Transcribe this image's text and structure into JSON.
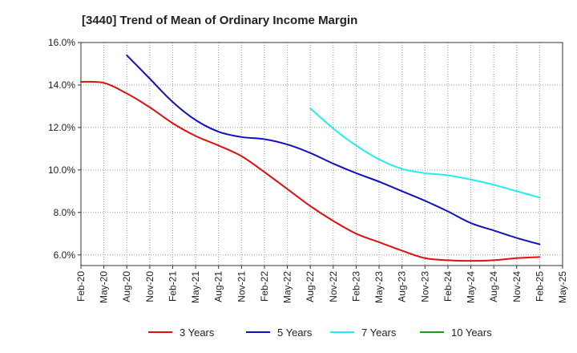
{
  "chart_data": {
    "type": "line",
    "title": "[3440]  Trend of Mean of Ordinary Income Margin",
    "xlabel": "",
    "ylabel": "",
    "ylim": [
      5.5,
      16.0
    ],
    "yticks": [
      6.0,
      8.0,
      10.0,
      12.0,
      14.0,
      16.0
    ],
    "ytick_labels": [
      "6.0%",
      "8.0%",
      "10.0%",
      "12.0%",
      "14.0%",
      "16.0%"
    ],
    "xticks": [
      "Feb-20",
      "May-20",
      "Aug-20",
      "Nov-20",
      "Feb-21",
      "May-21",
      "Aug-21",
      "Nov-21",
      "Feb-22",
      "May-22",
      "Aug-22",
      "Nov-22",
      "Feb-23",
      "May-23",
      "Aug-23",
      "Nov-23",
      "Feb-24",
      "May-24",
      "Aug-24",
      "Nov-24",
      "Feb-25",
      "May-25"
    ],
    "grid": true,
    "legend_position": "bottom",
    "series": [
      {
        "name": "3 Years",
        "color": "#dd1111",
        "x": [
          "Feb-20",
          "May-20",
          "Aug-20",
          "Nov-20",
          "Feb-21",
          "May-21",
          "Aug-21",
          "Nov-21",
          "Feb-22",
          "May-22",
          "Aug-22",
          "Nov-22",
          "Feb-23",
          "May-23",
          "Aug-23",
          "Nov-23",
          "Feb-24",
          "May-24",
          "Aug-24",
          "Nov-24",
          "Feb-25"
        ],
        "y": [
          14.15,
          14.1,
          13.6,
          12.95,
          12.2,
          11.6,
          11.15,
          10.65,
          9.9,
          9.1,
          8.3,
          7.6,
          7.0,
          6.6,
          6.2,
          5.85,
          5.75,
          5.72,
          5.75,
          5.85,
          5.9
        ]
      },
      {
        "name": "5 Years",
        "color": "#1111bb",
        "x": [
          "Aug-20",
          "Nov-20",
          "Feb-21",
          "May-21",
          "Aug-21",
          "Nov-21",
          "Feb-22",
          "May-22",
          "Aug-22",
          "Nov-22",
          "Feb-23",
          "May-23",
          "Aug-23",
          "Nov-23",
          "Feb-24",
          "May-24",
          "Aug-24",
          "Nov-24",
          "Feb-25"
        ],
        "y": [
          15.4,
          14.3,
          13.2,
          12.35,
          11.8,
          11.55,
          11.45,
          11.2,
          10.8,
          10.3,
          9.85,
          9.45,
          9.0,
          8.55,
          8.05,
          7.5,
          7.15,
          6.8,
          6.5
        ]
      },
      {
        "name": "7 Years",
        "color": "#22eeee",
        "x": [
          "Aug-22",
          "Nov-22",
          "Feb-23",
          "May-23",
          "Aug-23",
          "Nov-23",
          "Feb-24",
          "May-24",
          "Aug-24",
          "Nov-24",
          "Feb-25"
        ],
        "y": [
          12.9,
          11.95,
          11.15,
          10.5,
          10.05,
          9.85,
          9.75,
          9.55,
          9.3,
          9.0,
          8.7
        ]
      },
      {
        "name": "10 Years",
        "color": "#229922",
        "x": [],
        "y": []
      }
    ]
  }
}
